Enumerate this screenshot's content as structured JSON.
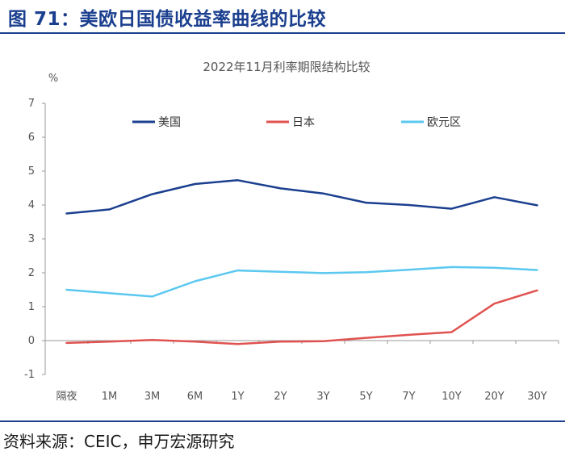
{
  "figure": {
    "title": "图 71：美欧日国债收益率曲线的比较",
    "source": "资料来源：CEIC，申万宏源研究"
  },
  "chart_data": {
    "type": "line",
    "title": "2022年11月利率期限结构比较",
    "ylabel": "%",
    "xlabel": "",
    "ylim": [
      -1,
      7
    ],
    "yticks": [
      -1,
      0,
      1,
      2,
      3,
      4,
      5,
      6,
      7
    ],
    "categories": [
      "隔夜",
      "1M",
      "3M",
      "6M",
      "1Y",
      "2Y",
      "3Y",
      "5Y",
      "7Y",
      "10Y",
      "20Y",
      "30Y"
    ],
    "legend_position": "top",
    "series": [
      {
        "name": "美国",
        "color": "#1b3f8f",
        "values": [
          3.75,
          3.87,
          4.32,
          4.62,
          4.73,
          4.49,
          4.34,
          4.07,
          4.0,
          3.89,
          4.23,
          3.99
        ]
      },
      {
        "name": "日本",
        "color": "#e0524f",
        "values": [
          -0.07,
          -0.03,
          0.02,
          -0.03,
          -0.1,
          -0.03,
          -0.02,
          0.08,
          0.17,
          0.25,
          1.09,
          1.48
        ]
      },
      {
        "name": "欧元区",
        "color": "#5bc8f0",
        "values": [
          1.5,
          1.4,
          1.3,
          1.75,
          2.07,
          2.03,
          1.99,
          2.02,
          2.09,
          2.17,
          2.15,
          2.08
        ]
      }
    ]
  }
}
